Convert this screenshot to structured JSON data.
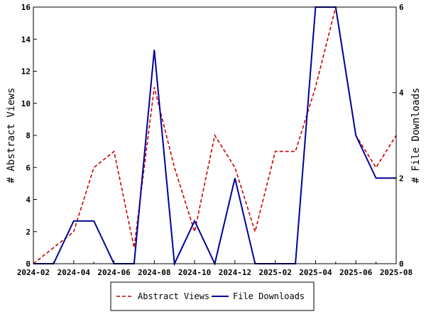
{
  "chart_data": {
    "type": "line",
    "x": [
      "2024-02",
      "2024-03",
      "2024-04",
      "2024-05",
      "2024-06",
      "2024-07",
      "2024-08",
      "2024-09",
      "2024-10",
      "2024-11",
      "2024-12",
      "2025-01",
      "2025-02",
      "2025-03",
      "2025-04",
      "2025-05",
      "2025-06",
      "2025-07",
      "2025-08"
    ],
    "xticks": [
      "2024-02",
      "2024-04",
      "2024-06",
      "2024-08",
      "2024-10",
      "2024-12",
      "2025-02",
      "2025-04",
      "2025-06",
      "2025-08"
    ],
    "series": [
      {
        "name": "Abstract Views",
        "axis": "left",
        "color": "#cc0000",
        "dash": "dashed",
        "values": [
          0,
          1,
          2,
          6,
          7,
          1,
          11,
          6,
          2,
          8,
          6,
          2,
          7,
          7,
          11,
          16,
          8,
          6,
          8
        ]
      },
      {
        "name": "File Downloads",
        "axis": "right",
        "color": "#000099",
        "dash": "solid",
        "values": [
          0,
          0,
          1,
          1,
          0,
          0,
          5,
          0,
          1,
          0,
          2,
          0,
          0,
          0,
          6,
          6,
          3,
          2,
          2
        ]
      }
    ],
    "ylabel": "# Abstract Views",
    "y2label": "# File Downloads",
    "ylim": [
      0,
      16
    ],
    "yticks": [
      0,
      2,
      4,
      6,
      8,
      10,
      12,
      14,
      16
    ],
    "y2lim": [
      0,
      6
    ],
    "y2ticks": [
      0,
      2,
      4,
      6
    ],
    "grid": false,
    "legend_position": "bottom-center"
  }
}
